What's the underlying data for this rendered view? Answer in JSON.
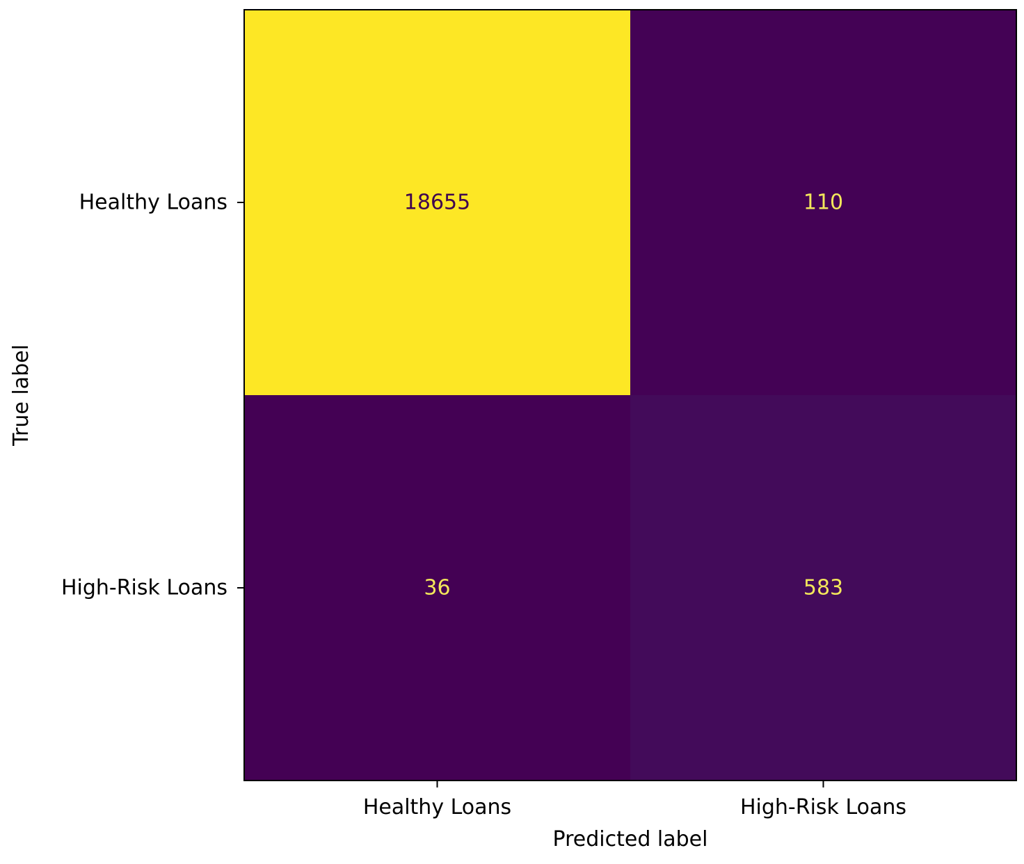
{
  "chart_data": {
    "type": "heatmap",
    "title": "",
    "xlabel": "Predicted label",
    "ylabel": "True label",
    "x_categories": [
      "Healthy Loans",
      "High-Risk Loans"
    ],
    "y_categories": [
      "Healthy Loans",
      "High-Risk Loans"
    ],
    "matrix": [
      [
        18655,
        110
      ],
      [
        36,
        583
      ]
    ],
    "colormap": "viridis",
    "colorbar": false,
    "grid": false,
    "colors": {
      "high": "#f3e75b",
      "low": "#3f054f",
      "low_mid": "#431259",
      "text_on_dark": "#f3e75b",
      "text_on_light": "#3f054f"
    }
  }
}
